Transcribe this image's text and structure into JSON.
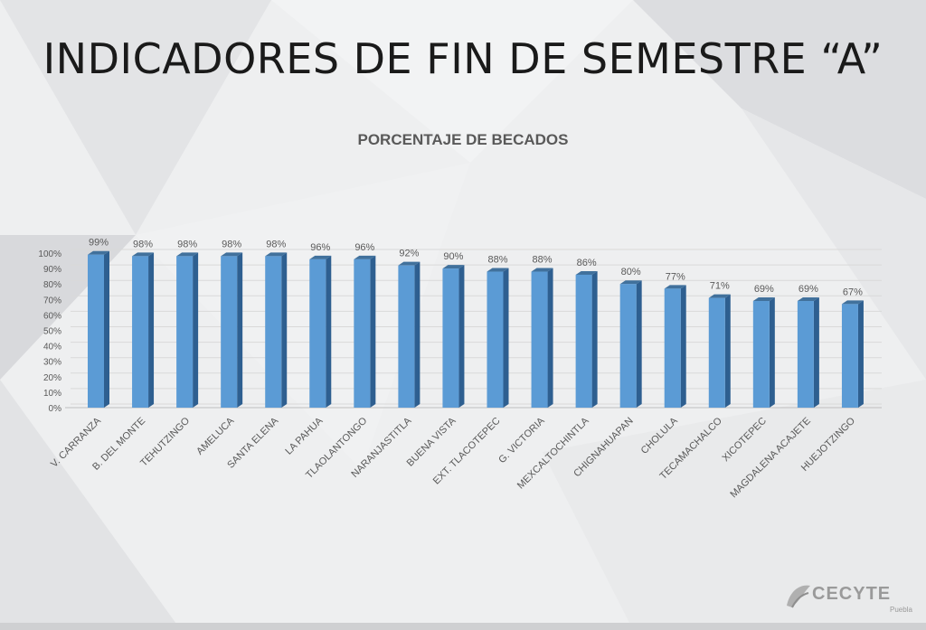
{
  "slide": {
    "title": "INDICADORES DE FIN DE SEMESTRE “A”"
  },
  "logo": {
    "name": "CECYTE",
    "subtitle": "Puebla"
  },
  "colors": {
    "bar_front": "#5b9bd5",
    "bar_side": "#2e5f90",
    "bar_top": "#41719c",
    "grid": "#d9d9d9",
    "text": "#595959"
  },
  "chart_data": {
    "type": "bar",
    "title": "PORCENTAJE DE BECADOS",
    "xlabel": "",
    "ylabel": "",
    "ylim": [
      0,
      100
    ],
    "yticks": [
      "0%",
      "10%",
      "20%",
      "30%",
      "40%",
      "50%",
      "60%",
      "70%",
      "80%",
      "90%",
      "100%"
    ],
    "grid": true,
    "legend": "none",
    "categories": [
      "V. CARRANZA",
      "B. DEL MONTE",
      "TEHUTZINGO",
      "AMELUCA",
      "SANTA ELENA",
      "LA PAHUA",
      "TLAOLANTONGO",
      "NARANJASTITLA",
      "BUENA VISTA",
      "EXT. TLACOTEPEC",
      "G. VICTORIA",
      "MEXCALTOCHINTLA",
      "CHIGNAHUAPAN",
      "CHOLULA",
      "TECAMACHALCO",
      "XICOTEPEC",
      "MAGDALENA ACAJETE",
      "HUEJOTZINGO"
    ],
    "values": [
      99,
      98,
      98,
      98,
      98,
      96,
      96,
      92,
      90,
      88,
      88,
      86,
      80,
      77,
      71,
      69,
      69,
      67
    ],
    "data_labels": [
      "99%",
      "98%",
      "98%",
      "98%",
      "98%",
      "96%",
      "96%",
      "92%",
      "90%",
      "88%",
      "88%",
      "86%",
      "80%",
      "77%",
      "71%",
      "69%",
      "69%",
      "67%"
    ]
  }
}
